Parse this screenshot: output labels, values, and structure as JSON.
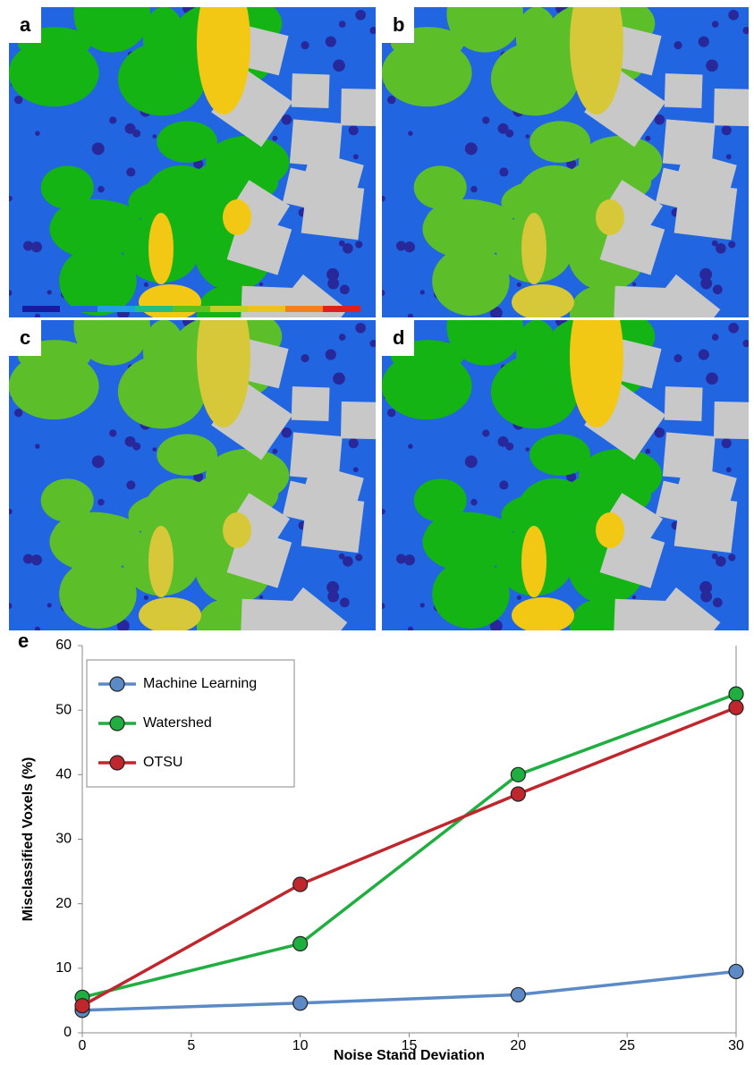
{
  "panels": [
    "a",
    "b",
    "c",
    "d"
  ],
  "chart_data": {
    "type": "line",
    "label": "e",
    "x_label": "Noise Stand Deviation",
    "y_label": "Misclassified Voxels (%)",
    "x": [
      0,
      10,
      20,
      30
    ],
    "series": [
      {
        "name": "Machine Learning",
        "color": "#5b8ac6",
        "values": [
          3.5,
          4.6,
          5.9,
          9.5
        ]
      },
      {
        "name": "Watershed",
        "color": "#1fae3f",
        "values": [
          5.5,
          13.8,
          40,
          52.5
        ]
      },
      {
        "name": "OTSU",
        "color": "#c0272d",
        "values": [
          4.2,
          23,
          37,
          50.4
        ]
      }
    ],
    "xlim": [
      0,
      30
    ],
    "xticks": [
      0,
      5,
      10,
      15,
      20,
      25,
      30
    ],
    "ylim": [
      0,
      60
    ],
    "yticks": [
      0,
      10,
      20,
      30,
      40,
      50,
      60
    ]
  }
}
